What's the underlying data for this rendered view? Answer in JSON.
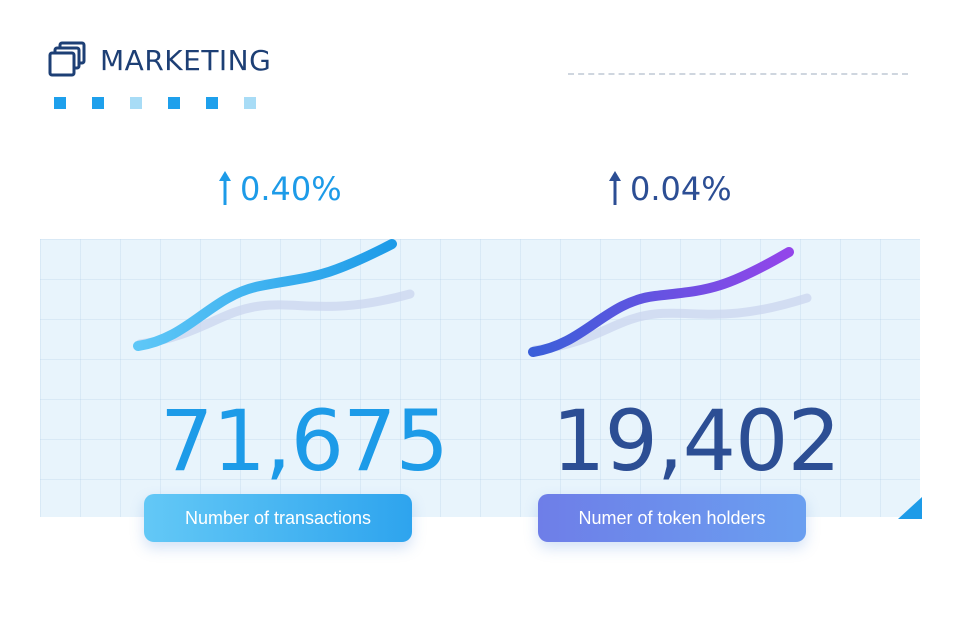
{
  "header": {
    "title": "MARKETING",
    "icon": "stacked-cards-icon"
  },
  "decor": {
    "square_colors": [
      "#1ea0ec",
      "#1ea0ec",
      "#a8dcf6",
      "#1ea0ec",
      "#1ea0ec",
      "#a8dcf6"
    ]
  },
  "stats": [
    {
      "change": "0.40%",
      "change_direction": "up",
      "value": "71,675",
      "label": "Number of  transactions",
      "color": "#1d9be8",
      "trend_icon": "trend-line-icon"
    },
    {
      "change": "0.04%",
      "change_direction": "up",
      "value": "19,402",
      "label": "Numer of token holders",
      "color": "#2c4e94",
      "trend_icon": "trend-line-icon"
    }
  ],
  "colors": {
    "accent_blue": "#1d9be8",
    "navy": "#1d3f75",
    "purple": "#8a47e8",
    "panel_bg": "#e8f4fc"
  }
}
